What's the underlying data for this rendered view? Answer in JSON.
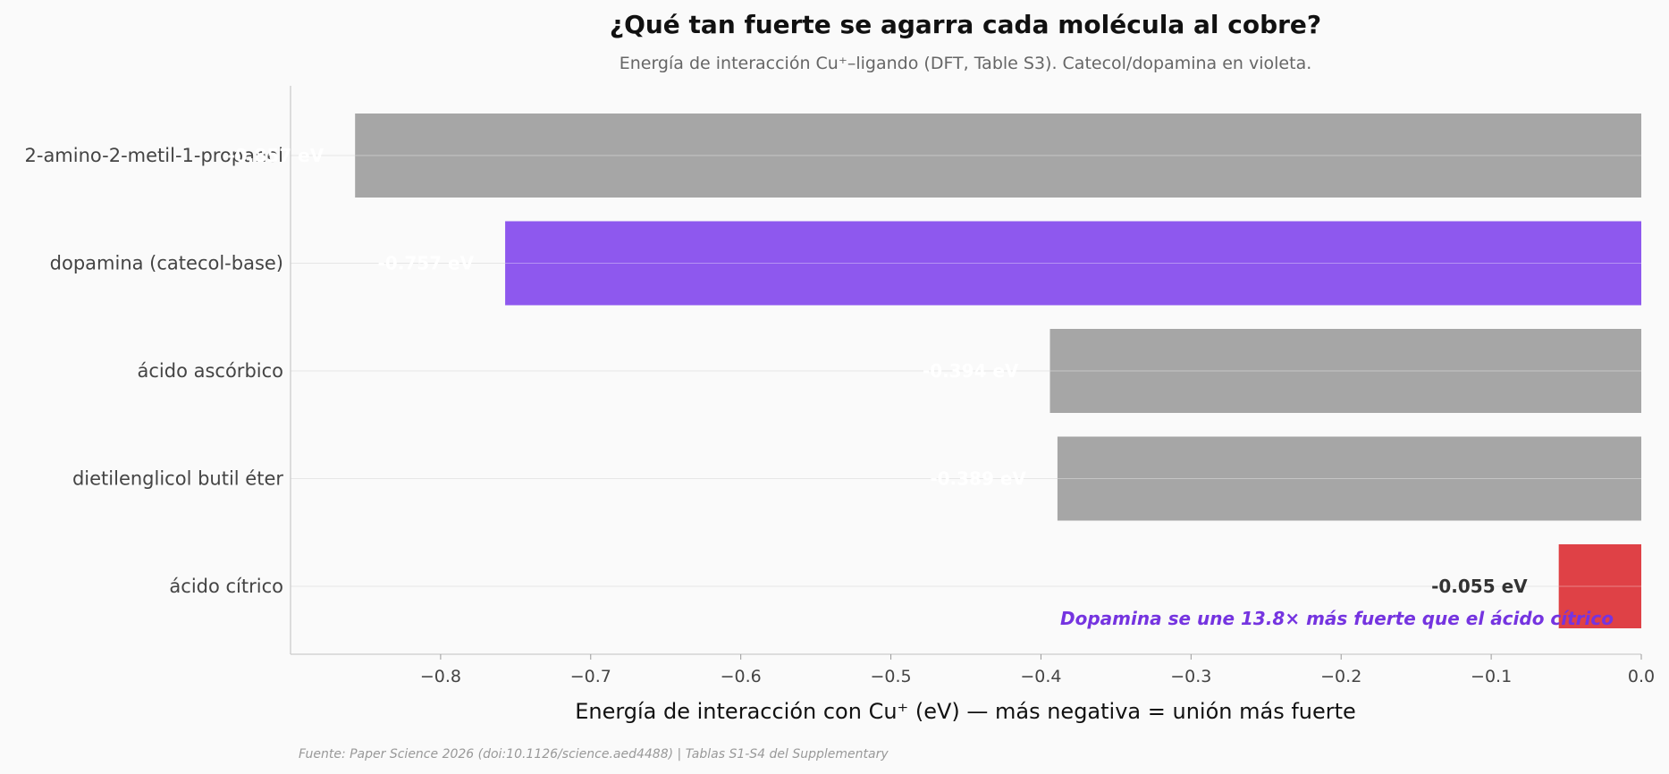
{
  "chart_data": {
    "type": "bar",
    "orientation": "horizontal",
    "title": "¿Qué tan fuerte se agarra cada molécula al cobre?",
    "subtitle": "Energía de interacción Cu⁺–ligando (DFT, Table S3). Catecol/dopamina en violeta.",
    "xlabel": "Energía de interacción con Cu⁺ (eV) — más negativa = unión más fuerte",
    "ylabel": "",
    "xlim": [
      -0.9,
      0.0
    ],
    "xticks": [
      -0.8,
      -0.7,
      -0.6,
      -0.5,
      -0.4,
      -0.3,
      -0.2,
      -0.1,
      0.0
    ],
    "xtick_labels": [
      "−0.8",
      "−0.7",
      "−0.6",
      "−0.5",
      "−0.4",
      "−0.3",
      "−0.2",
      "−0.1",
      "0.0"
    ],
    "categories": [
      "2-amino-2-metil-1-propanol",
      "dopamina (catecol-base)",
      "ácido ascórbico",
      "dietilenglicol butil éter",
      "ácido cítrico"
    ],
    "values": [
      -0.857,
      -0.757,
      -0.394,
      -0.389,
      -0.055
    ],
    "value_labels": [
      "-0.857 eV",
      "-0.757 eV",
      "-0.394 eV",
      "-0.389 eV",
      "-0.055 eV"
    ],
    "colors": [
      "#a6a6a6",
      "#8e58ee",
      "#a6a6a6",
      "#a6a6a6",
      "#df4146"
    ],
    "label_colors": [
      "#ffffff",
      "#ffffff",
      "#ffffff",
      "#ffffff",
      "#333333"
    ],
    "grid": "y",
    "annotation": {
      "text": "Dopamina se une 13.8× más fuerte que el ácido cítrico",
      "color": "#7534e0"
    },
    "source": "Fuente: Paper Science 2026 (doi:10.1126/science.aed4488) | Tablas S1-S4 del Supplementary"
  }
}
